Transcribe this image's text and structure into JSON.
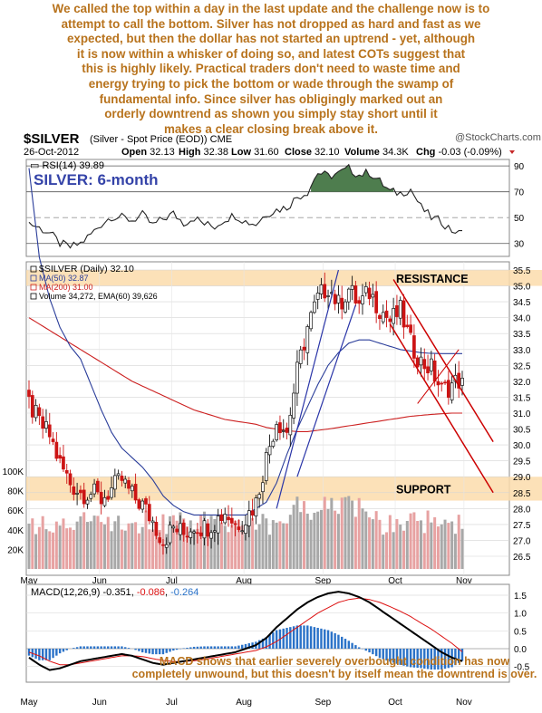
{
  "headline": [
    "We called the top within a day in the last update and the challenge now is to",
    "attempt to call the bottom. Silver has not dropped as hard and fast as we",
    "expected, but then the dollar has not started an uptrend - yet, although",
    "it is now within a whisker of doing so, and latest COTs suggest that",
    "this is highly likely. Practical traders don't need to waste time and",
    "energy trying to pick the bottom or wade through the swamp of",
    "fundamental info. Since silver has obligingly marked out an",
    "orderly downtrend as shown you simply stay short until it",
    "makes a clear closing break above it."
  ],
  "header": {
    "symbol": "$SILVER",
    "name": "(Silver - Spot Price (EOD)) CME",
    "watermark": "@StockCharts.com",
    "date": "26-Oct-2012",
    "ohlc_labels": [
      "Open",
      "High",
      "Low",
      "Close",
      "Volume",
      "Chg"
    ],
    "open": "32.13",
    "high": "32.38",
    "low": "31.60",
    "close": "32.10",
    "volume": "34.3K",
    "chg": "-0.03 (-0.09%)"
  },
  "colors": {
    "headline": "#b8731d",
    "annotation": "#b8731d",
    "band_fill": "#fbdcab",
    "ma50": "#2a3d9a",
    "ma200": "#cc2020",
    "downtrend": "#cc0000",
    "uptrend": "#2a35a8",
    "rsi_overbought": "#4e7d4e",
    "rsi_oversold": "#7b4848",
    "candle_up": "#111111",
    "candle_down": "#cc1414",
    "vol_up": "#a8a8a8",
    "vol_down": "#e7a2a2",
    "macd_line": "#000000",
    "signal_line": "#dd1111",
    "histogram": "#2a72c8"
  },
  "chart_data": [
    {
      "type": "line",
      "panel": "RSI",
      "series": [
        {
          "name": "RSI(14)",
          "last": 39.89
        }
      ],
      "title": "SILVER: 6-month",
      "ylim": [
        20,
        95
      ],
      "yticks": [
        "90",
        "70",
        "50",
        "30"
      ],
      "x": [
        0,
        3,
        6,
        9,
        12,
        15,
        18,
        21,
        24,
        27,
        30,
        33,
        36,
        39,
        42,
        45,
        48,
        51,
        54,
        57,
        60,
        63,
        66,
        69,
        72,
        75,
        78,
        81,
        84,
        87,
        90,
        93,
        96,
        99,
        102,
        105,
        108,
        111,
        114,
        117,
        120,
        123,
        126
      ],
      "values": [
        46,
        42,
        38,
        30,
        27,
        30,
        37,
        45,
        51,
        50,
        48,
        52,
        44,
        49,
        53,
        46,
        50,
        45,
        43,
        49,
        52,
        47,
        45,
        53,
        56,
        58,
        66,
        70,
        85,
        82,
        84,
        88,
        83,
        85,
        78,
        70,
        69,
        72,
        58,
        50,
        47,
        40,
        39.89
      ]
    },
    {
      "type": "candlestick",
      "panel": "Price",
      "legend": [
        "$SILVER (Daily) 32.10",
        "MA(50) 32.87",
        "MA(200) 31.00",
        "Volume 34,272, EMA(60) 39,626"
      ],
      "series": [
        {
          "name": "$SILVER (Daily)",
          "last": 32.1
        },
        {
          "name": "MA(50)",
          "last": 32.87
        },
        {
          "name": "MA(200)",
          "last": 31.0
        }
      ],
      "ylim": [
        26.0,
        35.75
      ],
      "yticks": [
        "35.5",
        "35.0",
        "34.5",
        "34.0",
        "33.5",
        "33.0",
        "32.5",
        "32.0",
        "31.5",
        "31.0",
        "30.5",
        "30.0",
        "29.5",
        "29.0",
        "28.5",
        "28.0",
        "27.5",
        "27.0",
        "26.5"
      ],
      "volume_ticks": [
        "100K",
        "80K",
        "60K",
        "40K",
        "20K"
      ],
      "xlabels": [
        "May",
        "Jun",
        "Jul",
        "Aug",
        "Sep",
        "Oct",
        "Nov"
      ],
      "x": [
        0,
        3,
        6,
        9,
        12,
        15,
        18,
        21,
        24,
        27,
        30,
        33,
        36,
        39,
        42,
        45,
        48,
        51,
        54,
        57,
        60,
        63,
        66,
        69,
        72,
        75,
        78,
        81,
        84,
        87,
        90,
        93,
        96,
        99,
        102,
        105,
        108,
        111,
        114,
        117,
        120,
        123,
        126
      ],
      "close": [
        31.3,
        30.7,
        30.3,
        29.4,
        28.8,
        28.5,
        28.5,
        28.3,
        28.6,
        28.9,
        28.4,
        28.1,
        27.6,
        27.0,
        27.4,
        27.2,
        27.5,
        27.4,
        27.6,
        27.9,
        27.5,
        27.7,
        28.2,
        29.6,
        30.8,
        30.4,
        32.3,
        33.7,
        34.6,
        35.0,
        34.4,
        34.9,
        34.4,
        34.8,
        34.3,
        33.9,
        34.2,
        33.2,
        32.6,
        32.4,
        31.7,
        31.9,
        32.1
      ],
      "ma50": [
        38.7,
        35.9,
        34.6,
        33.7,
        33.1,
        32.7,
        31.9,
        31.1,
        30.4,
        29.9,
        29.6,
        29.3,
        28.9,
        28.4,
        28.1,
        27.9,
        27.8,
        27.8,
        27.8,
        27.8,
        27.8,
        27.8,
        28.0,
        28.2,
        28.8,
        29.7,
        30.5,
        31.2,
        31.9,
        32.5,
        32.9,
        33.2,
        33.3,
        33.3,
        33.2,
        33.1,
        33.0,
        32.95,
        32.9,
        32.88,
        32.87,
        32.87,
        32.87
      ],
      "ma200": [
        34.0,
        33.8,
        33.6,
        33.4,
        33.2,
        33.0,
        32.8,
        32.6,
        32.4,
        32.2,
        32.0,
        31.85,
        31.7,
        31.55,
        31.4,
        31.25,
        31.1,
        31.0,
        30.9,
        30.8,
        30.75,
        30.7,
        30.65,
        30.55,
        30.5,
        30.45,
        30.42,
        30.42,
        30.46,
        30.5,
        30.55,
        30.6,
        30.65,
        30.7,
        30.75,
        30.8,
        30.85,
        30.9,
        30.93,
        30.96,
        30.98,
        31.0,
        31.0
      ],
      "annotations": [
        {
          "text": "RESISTANCE",
          "range": [
            35.0,
            35.5
          ]
        },
        {
          "text": "SUPPORT",
          "range": [
            28.25,
            29.0
          ]
        }
      ]
    },
    {
      "type": "line",
      "panel": "MACD",
      "legend_name": "MACD(12,26,9)",
      "legend_values": [
        "-0.351",
        "-0.086",
        "-0.264"
      ],
      "series": [
        {
          "name": "MACD",
          "last": -0.351
        },
        {
          "name": "Signal",
          "last": -0.086
        },
        {
          "name": "Histogram",
          "last": -0.264
        }
      ],
      "ylim": [
        -0.7,
        1.75
      ],
      "yticks": [
        "1.5",
        "1.0",
        "0.5",
        "0.0",
        "-0.5"
      ],
      "xlabels": [
        "May",
        "Jun",
        "Jul",
        "Aug",
        "Sep",
        "Oct",
        "Nov"
      ],
      "x": [
        0,
        3,
        6,
        9,
        12,
        15,
        18,
        21,
        24,
        27,
        30,
        33,
        36,
        39,
        42,
        45,
        48,
        51,
        54,
        57,
        60,
        63,
        66,
        69,
        72,
        75,
        78,
        81,
        84,
        87,
        90,
        93,
        96,
        99,
        102,
        105,
        108,
        111,
        114,
        117,
        120,
        123,
        126
      ],
      "macd": [
        -0.25,
        -0.45,
        -0.6,
        -0.55,
        -0.45,
        -0.35,
        -0.3,
        -0.25,
        -0.2,
        -0.15,
        -0.2,
        -0.3,
        -0.4,
        -0.45,
        -0.4,
        -0.35,
        -0.3,
        -0.25,
        -0.2,
        -0.15,
        -0.1,
        0.0,
        0.1,
        0.3,
        0.6,
        0.85,
        1.1,
        1.3,
        1.45,
        1.55,
        1.6,
        1.55,
        1.45,
        1.3,
        1.1,
        0.9,
        0.7,
        0.5,
        0.3,
        0.1,
        -0.1,
        -0.25,
        -0.351
      ],
      "signal": [
        -0.1,
        -0.2,
        -0.35,
        -0.45,
        -0.45,
        -0.4,
        -0.35,
        -0.3,
        -0.25,
        -0.2,
        -0.2,
        -0.22,
        -0.28,
        -0.33,
        -0.36,
        -0.36,
        -0.34,
        -0.3,
        -0.25,
        -0.2,
        -0.15,
        -0.1,
        -0.05,
        0.05,
        0.2,
        0.4,
        0.6,
        0.8,
        1.0,
        1.15,
        1.3,
        1.38,
        1.42,
        1.38,
        1.3,
        1.18,
        1.05,
        0.9,
        0.72,
        0.55,
        0.35,
        0.15,
        -0.086
      ],
      "annotation": [
        "MACD shows that earlier severely overbought condition has now",
        "completely unwound, but this doesn't by itself mean the downtrend is over."
      ]
    }
  ]
}
